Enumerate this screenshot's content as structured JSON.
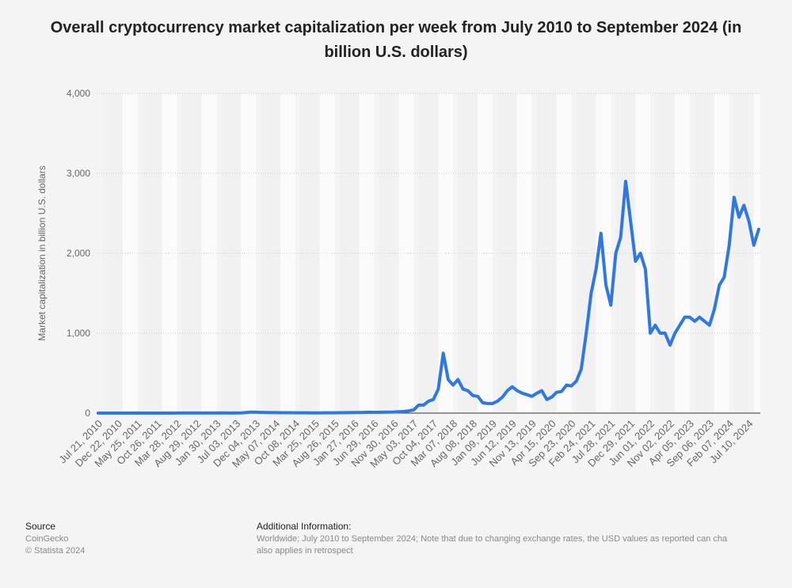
{
  "chart_data": {
    "type": "line",
    "title": "Overall cryptocurrency market capitalization per week from July 2010 to September 2024 (in billion U.S. dollars)",
    "y_label": "Market capitalization in billion U.S. dollars",
    "color": "#2f78e4",
    "categories": [
      "Jul 21, 2010",
      null,
      null,
      null,
      "Dec 22, 2010",
      null,
      null,
      null,
      "May 25, 2011",
      null,
      null,
      null,
      "Oct 26, 2011",
      null,
      null,
      null,
      "Mar 28, 2012",
      null,
      null,
      null,
      "Aug 29, 2012",
      null,
      null,
      null,
      "Jan 30, 2013",
      null,
      null,
      null,
      "Jul 03, 2013",
      null,
      null,
      null,
      "Dec 04, 2013",
      null,
      null,
      null,
      "May 07, 2014",
      null,
      null,
      null,
      "Oct 08, 2014",
      null,
      null,
      null,
      "Mar 25, 2015",
      null,
      null,
      null,
      "Aug 26, 2015",
      null,
      null,
      null,
      "Jan 27, 2016",
      null,
      null,
      null,
      "Jun 29, 2016",
      null,
      null,
      null,
      "Nov 30, 2016",
      null,
      null,
      null,
      "May 03, 2017",
      null,
      null,
      null,
      "Oct 04, 2017",
      null,
      null,
      null,
      "Mar 07, 2018",
      null,
      null,
      null,
      "Aug 08, 2018",
      null,
      null,
      null,
      "Jan 09, 2019",
      null,
      null,
      null,
      "Jun 12, 2019",
      null,
      null,
      null,
      "Nov 13, 2019",
      null,
      null,
      null,
      "Apr 15, 2020",
      null,
      null,
      null,
      "Sep 23, 2020",
      null,
      null,
      null,
      "Feb 24, 2021",
      null,
      null,
      null,
      "Jul 28, 2021",
      null,
      null,
      null,
      "Dec 29, 2021",
      null,
      null,
      null,
      "Jun 01, 2022",
      null,
      null,
      null,
      "Nov 02, 2022",
      null,
      null,
      null,
      "Apr 05, 2023",
      null,
      null,
      null,
      "Sep 06, 2023",
      null,
      null,
      null,
      "Feb 07, 2024",
      null,
      null,
      null,
      "Jul 10, 2024",
      null,
      null
    ],
    "values": [
      0,
      0,
      0,
      0,
      0,
      0,
      0,
      0,
      1,
      0,
      0,
      0,
      0,
      0,
      0,
      0,
      1,
      1,
      1,
      1,
      1,
      1,
      1,
      1,
      1,
      2,
      1,
      1,
      1,
      2,
      7,
      12,
      11,
      9,
      7,
      6,
      6,
      5,
      5,
      5,
      4,
      4,
      4,
      3,
      3,
      3,
      4,
      4,
      4,
      5,
      5,
      6,
      7,
      7,
      9,
      11,
      10,
      10,
      11,
      13,
      14,
      17,
      20,
      28,
      40,
      100,
      100,
      150,
      170,
      300,
      750,
      420,
      350,
      420,
      300,
      280,
      220,
      210,
      130,
      120,
      120,
      150,
      200,
      280,
      330,
      280,
      250,
      230,
      210,
      250,
      280,
      170,
      200,
      260,
      270,
      350,
      340,
      400,
      550,
      1000,
      1500,
      1800,
      2250,
      1600,
      1350,
      2000,
      2200,
      2900,
      2400,
      1900,
      2000,
      1800,
      1000,
      1100,
      1000,
      1000,
      850,
      1000,
      1100,
      1200,
      1200,
      1150,
      1200,
      1150,
      1100,
      1300,
      1600,
      1700,
      2100,
      2700,
      2450,
      2600,
      2400,
      2100,
      2300
    ],
    "ylim": [
      0,
      4000
    ],
    "yticks": [
      0,
      {
        "value": 1000,
        "label": "1,000"
      },
      {
        "value": 2000,
        "label": "2,000"
      },
      {
        "value": 3000,
        "label": "3,000"
      },
      {
        "value": 4000,
        "label": "4,000"
      }
    ],
    "grid": true
  },
  "footer": {
    "source_heading": "Source",
    "source": "CoinGecko",
    "copyright": "© Statista 2024",
    "info_heading": "Additional Information:",
    "info_line1": "Worldwide; July 2010 to September 2024; Note that due to changing exchange rates, the USD values as reported can cha",
    "info_line2": "also applies in retrospect"
  }
}
